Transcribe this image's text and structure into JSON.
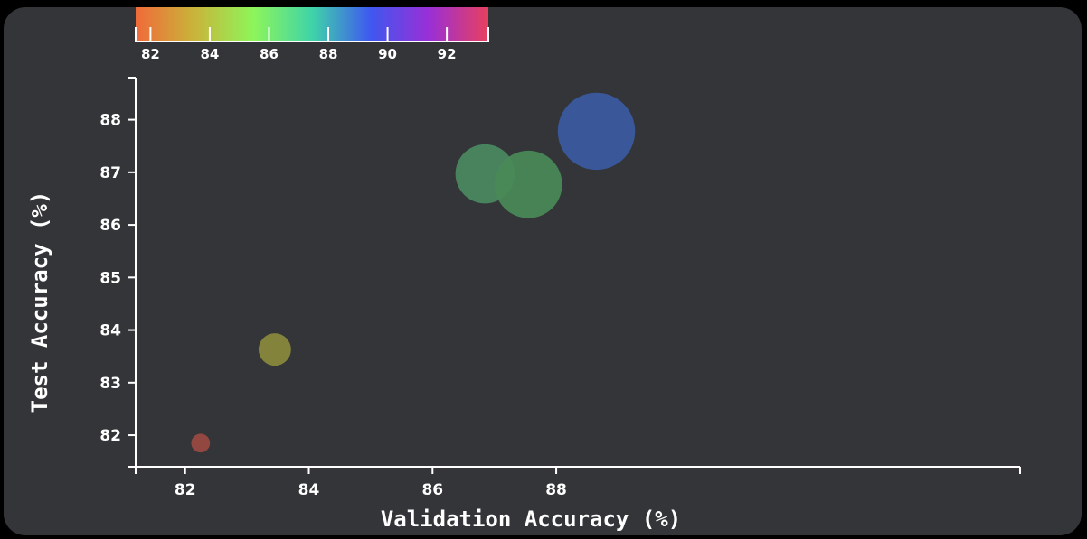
{
  "chart_data": {
    "type": "scatter",
    "xlabel": "Validation Accuracy (%)",
    "ylabel": "Test Accuracy (%)",
    "xlim": [
      81.2,
      95.5
    ],
    "ylim": [
      81.4,
      88.8
    ],
    "x_ticks": [
      82,
      84,
      86,
      88
    ],
    "y_ticks": [
      82,
      83,
      84,
      85,
      86,
      87,
      88
    ],
    "colorbar": {
      "range": [
        81.5,
        93.4
      ],
      "ticks": [
        82,
        84,
        86,
        88,
        90,
        92
      ],
      "colors": [
        "#f06a3a",
        "#c9b43a",
        "#8ef55a",
        "#3fd4a8",
        "#3f57f0",
        "#9a2fd6",
        "#e8405e"
      ],
      "placement": "top-left"
    },
    "points": [
      {
        "x": 82.25,
        "y": 81.85,
        "size": 1,
        "color_value": 82.25,
        "color": "#9a4a42"
      },
      {
        "x": 83.45,
        "y": 83.63,
        "size": 3,
        "color_value": 83.45,
        "color": "#8a8a3c"
      },
      {
        "x": 86.85,
        "y": 86.97,
        "size": 10,
        "color_value": 86.85,
        "color": "#4a8a62"
      },
      {
        "x": 87.55,
        "y": 86.77,
        "size": 13,
        "color_value": 87.55,
        "color": "#4a8a58"
      },
      {
        "x": 88.65,
        "y": 87.78,
        "size": 17,
        "color_value": 88.65,
        "color": "#3a5aa2"
      }
    ],
    "grid": false
  }
}
